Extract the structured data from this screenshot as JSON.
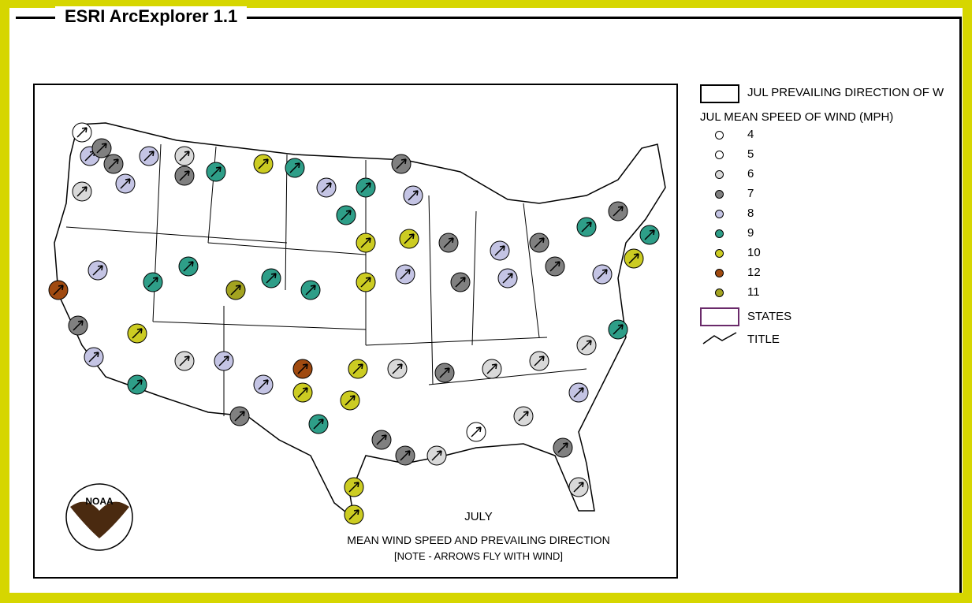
{
  "window": {
    "title": "ESRI ArcExplorer 1.1"
  },
  "map": {
    "logo": "NOAA",
    "month": "JULY",
    "caption": "MEAN WIND SPEED AND PREVAILING DIRECTION",
    "note": "[NOTE - ARROWS FLY WITH WIND]"
  },
  "legend": {
    "direction_layer": "JUL PREVAILING DIRECTION OF W",
    "speed_layer": "JUL MEAN SPEED OF WIND (MPH)",
    "classes": [
      {
        "label": "4",
        "color": "#ffffff"
      },
      {
        "label": "5",
        "color": "#ffffff"
      },
      {
        "label": "6",
        "color": "#d9d9d9"
      },
      {
        "label": "7",
        "color": "#808080"
      },
      {
        "label": "8",
        "color": "#c4c4e4"
      },
      {
        "label": "9",
        "color": "#2e9e88"
      },
      {
        "label": "10",
        "color": "#cccc22"
      },
      {
        "label": "12",
        "color": "#a04a10"
      },
      {
        "label": "11",
        "color": "#a3a320"
      }
    ],
    "states_layer": "STATES",
    "title_layer": "TITLE"
  }
}
